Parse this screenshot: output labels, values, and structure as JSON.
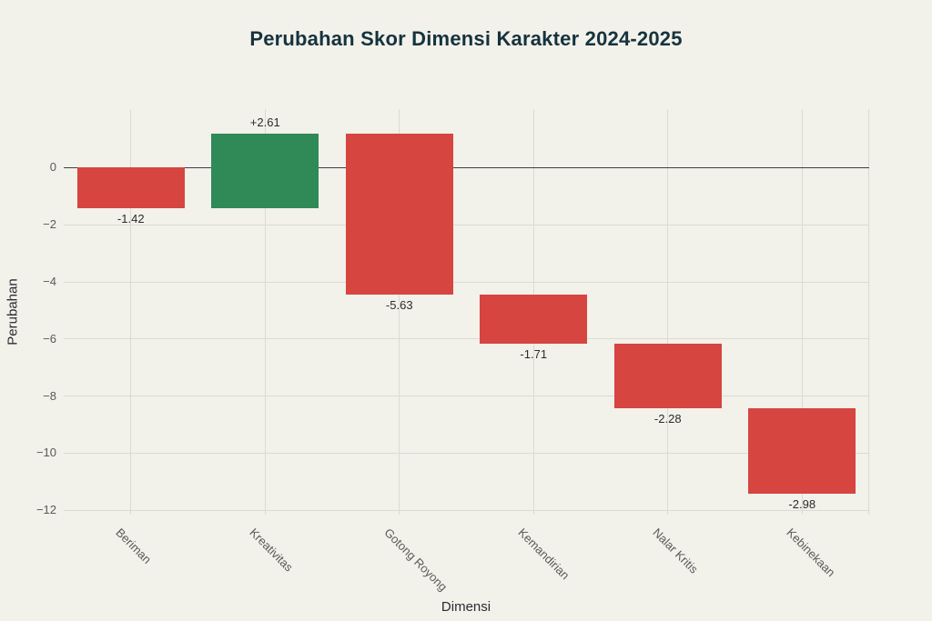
{
  "title": "Perubahan Skor Dimensi Karakter 2024-2025",
  "chart_data": {
    "type": "bar",
    "subtype": "waterfall",
    "title": "Perubahan Skor Dimensi Karakter 2024-2025",
    "xlabel": "Dimensi",
    "ylabel": "Perubahan",
    "categories": [
      "Beriman",
      "Kreativitas",
      "Gotong Royong",
      "Kemandirian",
      "Nalar Kritis",
      "Kebinekaan"
    ],
    "values": [
      -1.42,
      2.61,
      -5.63,
      -1.71,
      -2.28,
      -2.98
    ],
    "bar_labels": [
      "-1.42",
      "+2.61",
      "-5.63",
      "-1.71",
      "-2.28",
      "-2.98"
    ],
    "cumulative_end": [
      -1.42,
      1.19,
      -4.44,
      -6.15,
      -8.43,
      -11.41
    ],
    "y_ticks": [
      0,
      -2,
      -4,
      -6,
      -8,
      -10,
      -12
    ],
    "y_tick_labels": [
      "0",
      "−2",
      "−4",
      "−6",
      "−8",
      "−10",
      "−12"
    ],
    "ylim": [
      -12.15,
      2.05
    ],
    "grid": true,
    "legend": null,
    "colors": {
      "positive": "#2f8a57",
      "negative": "#d64540",
      "background": "#f2f1ea",
      "grid": "#dcdbd3",
      "zero_line": "#3f3f3f",
      "title": "#15333e",
      "tick": "#5a5a5a",
      "label": "#2b2b2b",
      "axis_label": "#2b2b33"
    }
  }
}
